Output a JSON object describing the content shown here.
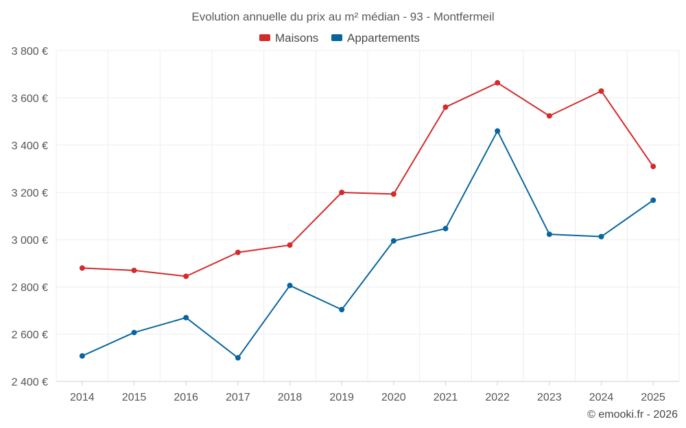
{
  "chart_data": {
    "type": "line",
    "title": "Evolution annuelle du prix au m² médian - 93 - Montfermeil",
    "categories": [
      "2014",
      "2015",
      "2016",
      "2017",
      "2018",
      "2019",
      "2020",
      "2021",
      "2022",
      "2023",
      "2024",
      "2025"
    ],
    "series": [
      {
        "name": "Maisons",
        "color": "#d42a2a",
        "values": [
          2880,
          2870,
          2845,
          2946,
          2977,
          3200,
          3193,
          3561,
          3664,
          3524,
          3629,
          3310
        ]
      },
      {
        "name": "Appartements",
        "color": "#07659c",
        "values": [
          2508,
          2607,
          2670,
          2500,
          2806,
          2704,
          2995,
          3047,
          3460,
          3023,
          3013,
          3167
        ]
      }
    ],
    "ylim": [
      2400,
      3800
    ],
    "yticks": [
      2400,
      2600,
      2800,
      3000,
      3200,
      3400,
      3600,
      3800
    ],
    "ytick_labels": [
      "2 400 €",
      "2 600 €",
      "2 800 €",
      "3 000 €",
      "3 200 €",
      "3 400 €",
      "3 600 €",
      "3 800 €"
    ],
    "xlabel": "",
    "ylabel": "",
    "grid": true,
    "legend_position": "top-center"
  },
  "credit": "© emooki.fr - 2026"
}
